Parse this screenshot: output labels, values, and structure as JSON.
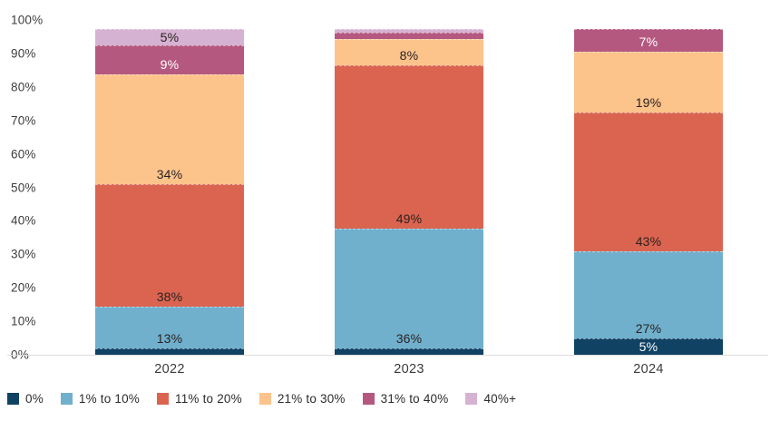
{
  "chart_data": {
    "type": "bar",
    "stacked": true,
    "title": "",
    "xlabel": "",
    "ylabel": "",
    "categories": [
      "2022",
      "2023",
      "2024"
    ],
    "series": [
      {
        "name": "0%",
        "color": "#0f4263",
        "label_color": "light",
        "values": [
          2,
          2,
          5
        ],
        "labels": [
          "",
          "",
          "5%"
        ]
      },
      {
        "name": "1% to 10%",
        "color": "#70b0cd",
        "label_color": "dark",
        "values": [
          13,
          36,
          27
        ],
        "labels": [
          "13%",
          "36%",
          "27%"
        ]
      },
      {
        "name": "11% to 20%",
        "color": "#da6450",
        "label_color": "dark",
        "values": [
          38,
          49,
          43
        ],
        "labels": [
          "38%",
          "49%",
          "43%"
        ]
      },
      {
        "name": "21% to 30%",
        "color": "#fcc38b",
        "label_color": "dark",
        "values": [
          34,
          8,
          19
        ],
        "labels": [
          "34%",
          "8%",
          "19%"
        ]
      },
      {
        "name": "31% to 40%",
        "color": "#b5587f",
        "label_color": "light",
        "values": [
          9,
          2,
          7
        ],
        "labels": [
          "9%",
          "",
          "7%"
        ]
      },
      {
        "name": "40%+",
        "color": "#d6b2d2",
        "label_color": "dark",
        "values": [
          5,
          1,
          0
        ],
        "labels": [
          "5%",
          "",
          ""
        ]
      }
    ],
    "ylim": [
      0,
      100
    ],
    "yticks": [
      "0%",
      "10%",
      "20%",
      "30%",
      "40%",
      "50%",
      "60%",
      "70%",
      "80%",
      "90%",
      "100%"
    ],
    "grid": false,
    "legend_position": "bottom-left",
    "render": {
      "stack_top_pct": 97.3
    }
  },
  "colors": {
    "background": "#ffffff",
    "axis_line": "#dcdcdc",
    "tick_text": "#3d3d3d",
    "dark_label": "#2a2220"
  }
}
